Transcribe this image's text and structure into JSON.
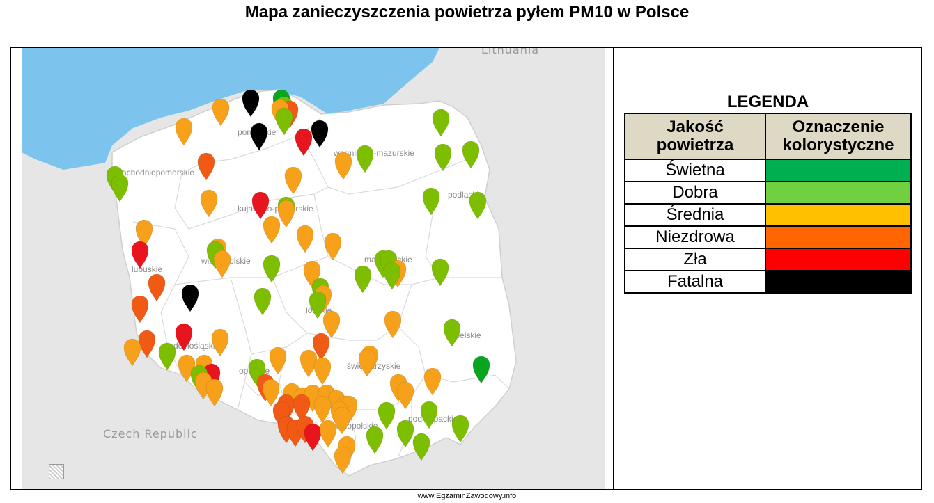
{
  "title": "Mapa zanieczyszczenia powietrza pyłem PM10 w Polsce",
  "map": {
    "country_labels": [
      "Lithuania",
      "Czech Republic"
    ],
    "region_labels": [
      "pomorskie",
      "warmińsko-mazurskie",
      "zachodniopomorskie",
      "podlaskie",
      "kujawsko-pomorskie",
      "wielkopolskie",
      "mazowieckie",
      "lubuskie",
      "łódzkie",
      "lubelskie",
      "dolnośląskie",
      "opolskie",
      "świętokrzyskie",
      "małopolskie",
      "podkarpackie"
    ],
    "colors": {
      "sea": "#7cc4ee",
      "land": "#ffffff",
      "neighbors": "#e6e6e6",
      "borders": "#d0d0d0"
    }
  },
  "legend": {
    "title": "LEGENDA",
    "col_quality": "Jakość powietrza",
    "col_color": "Oznaczenie kolorystyczne",
    "rows": [
      {
        "label": "Świetna",
        "color": "#00b050"
      },
      {
        "label": "Dobra",
        "color": "#70d040"
      },
      {
        "label": "Średnia",
        "color": "#ffc000"
      },
      {
        "label": "Niezdrowa",
        "color": "#ff6600"
      },
      {
        "label": "Zła",
        "color": "#ff0000"
      },
      {
        "label": "Fatalna",
        "color": "#000000"
      }
    ]
  },
  "marker_colors": {
    "swietna": "#0aa51e",
    "dobra": "#7dbf00",
    "srednia": "#f7a11a",
    "niezdrowa": "#f05a14",
    "zla": "#e8141e",
    "fatalna": "#000000"
  },
  "footer": "www.EgzaminZawodowy.info"
}
